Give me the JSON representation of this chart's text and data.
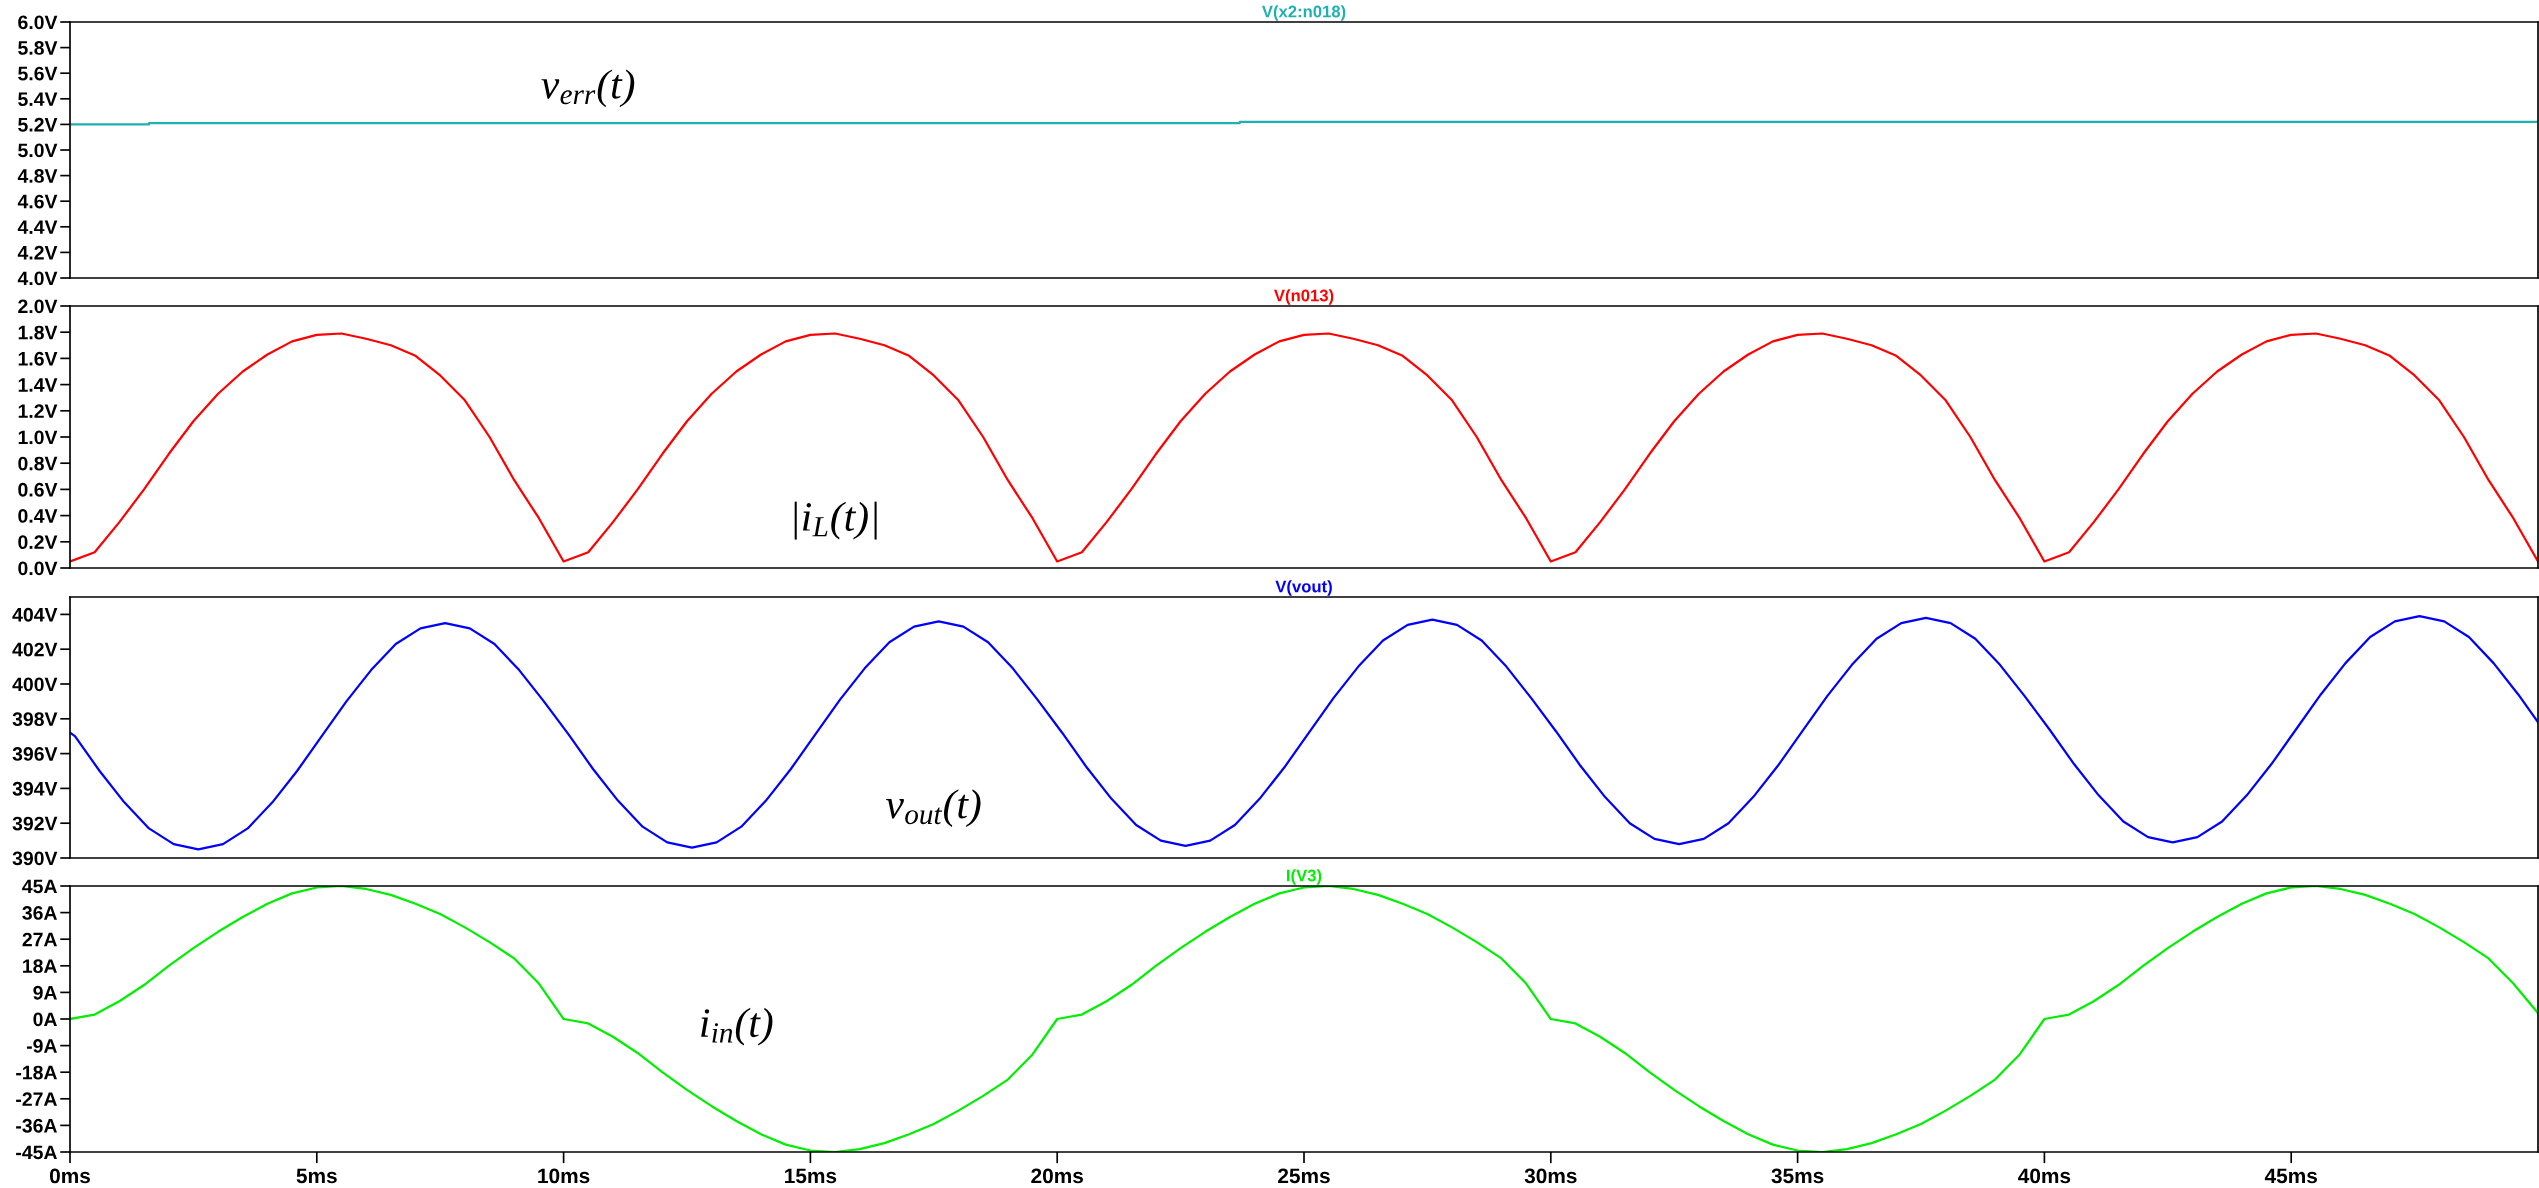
{
  "chart_data": [
    {
      "type": "step",
      "x": [
        0,
        1.6,
        23.7,
        50
      ],
      "series": [
        {
          "name": "V(x2:n018)",
          "color": "#1fb1b1",
          "values": [
            5.2,
            5.21,
            5.22,
            5.22
          ]
        }
      ],
      "annotations": [
        "v$_{err}$(t)"
      ],
      "xlim": [
        0,
        50
      ],
      "ylim": [
        4.0,
        6.0
      ],
      "yticks": [
        {
          "value": 4.0,
          "label": "4.0V"
        },
        {
          "value": 4.2,
          "label": "4.2V"
        },
        {
          "value": 4.4,
          "label": "4.4V"
        },
        {
          "value": 4.6,
          "label": "4.6V"
        },
        {
          "value": 4.8,
          "label": "4.8V"
        },
        {
          "value": 5.0,
          "label": "5.0V"
        },
        {
          "value": 5.2,
          "label": "5.2V"
        },
        {
          "value": 5.4,
          "label": "5.4V"
        },
        {
          "value": 5.6,
          "label": "5.6V"
        },
        {
          "value": 5.8,
          "label": "5.8V"
        },
        {
          "value": 6.0,
          "label": "6.0V"
        }
      ],
      "tick_labels": "y",
      "grid": false,
      "legend": false
    },
    {
      "type": "line",
      "x": [
        0,
        0.5,
        1,
        1.5,
        2,
        2.5,
        3,
        3.5,
        4,
        4.5,
        5,
        5.5,
        6,
        6.5,
        7,
        7.5,
        8,
        8.5,
        9,
        9.5,
        10,
        10.5,
        11,
        11.5,
        12,
        12.5,
        13,
        13.5,
        14,
        14.5,
        15,
        15.5,
        16,
        16.5,
        17,
        17.5,
        18,
        18.5,
        19,
        19.5,
        20,
        20.5,
        21,
        21.5,
        22,
        22.5,
        23,
        23.5,
        24,
        24.5,
        25,
        25.5,
        26,
        26.5,
        27,
        27.5,
        28,
        28.5,
        29,
        29.5,
        30,
        30.5,
        31,
        31.5,
        32,
        32.5,
        33,
        33.5,
        34,
        34.5,
        35,
        35.5,
        36,
        36.5,
        37,
        37.5,
        38,
        38.5,
        39,
        39.5,
        40,
        40.5,
        41,
        41.5,
        42,
        42.5,
        43,
        43.5,
        44,
        44.5,
        45,
        45.5,
        46,
        46.5,
        47,
        47.5,
        48,
        48.5,
        49,
        49.5,
        50
      ],
      "series": [
        {
          "name": "V(n013)",
          "color": "#ff0000",
          "values": [
            0.05,
            0.12,
            0.35,
            0.6,
            0.87,
            1.12,
            1.33,
            1.5,
            1.63,
            1.73,
            1.78,
            1.79,
            1.75,
            1.7,
            1.62,
            1.47,
            1.28,
            1.0,
            0.67,
            0.38,
            0.05,
            0.12,
            0.35,
            0.6,
            0.87,
            1.12,
            1.33,
            1.5,
            1.63,
            1.73,
            1.78,
            1.79,
            1.75,
            1.7,
            1.62,
            1.47,
            1.28,
            1.0,
            0.67,
            0.38,
            0.05,
            0.12,
            0.35,
            0.6,
            0.87,
            1.12,
            1.33,
            1.5,
            1.63,
            1.73,
            1.78,
            1.79,
            1.75,
            1.7,
            1.62,
            1.47,
            1.28,
            1.0,
            0.67,
            0.38,
            0.05,
            0.12,
            0.35,
            0.6,
            0.87,
            1.12,
            1.33,
            1.5,
            1.63,
            1.73,
            1.78,
            1.79,
            1.75,
            1.7,
            1.62,
            1.47,
            1.28,
            1.0,
            0.67,
            0.38,
            0.05,
            0.12,
            0.35,
            0.6,
            0.87,
            1.12,
            1.33,
            1.5,
            1.63,
            1.73,
            1.78,
            1.79,
            1.75,
            1.7,
            1.62,
            1.47,
            1.28,
            1.0,
            0.67,
            0.38,
            0.05
          ]
        }
      ],
      "annotations": [
        "|i$_{L}$(t)|"
      ],
      "xlim": [
        0,
        50
      ],
      "ylim": [
        0.0,
        2.0
      ],
      "yticks": [
        {
          "value": 0.0,
          "label": "0.0V"
        },
        {
          "value": 0.2,
          "label": "0.2V"
        },
        {
          "value": 0.4,
          "label": "0.4V"
        },
        {
          "value": 0.6,
          "label": "0.6V"
        },
        {
          "value": 0.8,
          "label": "0.8V"
        },
        {
          "value": 1.0,
          "label": "1.0V"
        },
        {
          "value": 1.2,
          "label": "1.2V"
        },
        {
          "value": 1.4,
          "label": "1.4V"
        },
        {
          "value": 1.6,
          "label": "1.6V"
        },
        {
          "value": 1.8,
          "label": "1.8V"
        },
        {
          "value": 2.0,
          "label": "2.0V"
        }
      ],
      "tick_labels": "y",
      "grid": false,
      "legend": false
    },
    {
      "type": "line",
      "x": [
        0,
        0.1,
        0.6,
        1.1,
        1.6,
        2.1,
        2.6,
        3.1,
        3.6,
        4.1,
        4.6,
        5.1,
        5.6,
        6.1,
        6.6,
        7.1,
        7.6,
        8.1,
        8.6,
        9.1,
        9.6,
        10.1,
        10.6,
        11.1,
        11.6,
        12.1,
        12.6,
        13.1,
        13.6,
        14.1,
        14.6,
        15.1,
        15.6,
        16.1,
        16.6,
        17.1,
        17.6,
        18.1,
        18.6,
        19.1,
        19.6,
        20.1,
        20.6,
        21.1,
        21.6,
        22.1,
        22.6,
        23.1,
        23.6,
        24.1,
        24.6,
        25.1,
        25.6,
        26.1,
        26.6,
        27.1,
        27.6,
        28.1,
        28.6,
        29.1,
        29.6,
        30.1,
        30.6,
        31.1,
        31.6,
        32.1,
        32.6,
        33.1,
        33.6,
        34.1,
        34.6,
        35.1,
        35.6,
        36.1,
        36.6,
        37.1,
        37.6,
        38.1,
        38.6,
        39.1,
        39.6,
        40.1,
        40.6,
        41.1,
        41.6,
        42.1,
        42.6,
        43.1,
        43.6,
        44.1,
        44.6,
        45.1,
        45.6,
        46.1,
        46.6,
        47.1,
        47.6,
        48.1,
        48.6,
        49.1,
        49.6,
        50
      ],
      "series": [
        {
          "name": "V(vout)",
          "color": "#0000ff",
          "values": [
            397.2,
            397,
            395,
            393.2,
            391.7,
            390.8,
            390.5,
            390.8,
            391.7,
            393.2,
            395,
            397,
            399,
            400.8,
            402.3,
            403.2,
            403.5,
            403.2,
            402.3,
            400.8,
            399,
            397.1,
            395.1,
            393.3,
            391.8,
            390.9,
            390.6,
            390.9,
            391.8,
            393.3,
            395.1,
            397.1,
            399.1,
            400.9,
            402.4,
            403.3,
            403.6,
            403.3,
            402.4,
            400.9,
            399.1,
            397.2,
            395.2,
            393.4,
            391.9,
            391,
            390.7,
            391,
            391.9,
            393.4,
            395.2,
            397.2,
            399.2,
            401,
            402.5,
            403.4,
            403.7,
            403.4,
            402.5,
            401,
            399.2,
            397.3,
            395.3,
            393.5,
            392,
            391.1,
            390.8,
            391.1,
            392,
            393.5,
            395.3,
            397.3,
            399.3,
            401.1,
            402.6,
            403.5,
            403.8,
            403.5,
            402.6,
            401.1,
            399.3,
            397.4,
            395.4,
            393.6,
            392.1,
            391.2,
            390.9,
            391.2,
            392.1,
            393.6,
            395.4,
            397.4,
            399.4,
            401.2,
            402.7,
            403.6,
            403.9,
            403.6,
            402.7,
            401.2,
            399.4,
            397.8
          ]
        }
      ],
      "annotations": [
        "v$_{out}$(t)"
      ],
      "xlim": [
        0,
        50
      ],
      "ylim": [
        390,
        405
      ],
      "yticks": [
        {
          "value": 390,
          "label": "390V"
        },
        {
          "value": 392,
          "label": "392V"
        },
        {
          "value": 394,
          "label": "394V"
        },
        {
          "value": 396,
          "label": "396V"
        },
        {
          "value": 398,
          "label": "398V"
        },
        {
          "value": 400,
          "label": "400V"
        },
        {
          "value": 402,
          "label": "402V"
        },
        {
          "value": 404,
          "label": "404V"
        }
      ],
      "tick_labels": "y",
      "grid": false,
      "legend": false
    },
    {
      "type": "line",
      "x": [
        0,
        0.5,
        1,
        1.5,
        2,
        2.5,
        3,
        3.5,
        4,
        4.5,
        5,
        5.5,
        6,
        6.5,
        7,
        7.5,
        8,
        8.5,
        9,
        9.5,
        10,
        10.5,
        11,
        11.5,
        12,
        12.5,
        13,
        13.5,
        14,
        14.5,
        15,
        15.5,
        16,
        16.5,
        17,
        17.5,
        18,
        18.5,
        19,
        19.5,
        20,
        20.5,
        21,
        21.5,
        22,
        22.5,
        23,
        23.5,
        24,
        24.5,
        25,
        25.5,
        26,
        26.5,
        27,
        27.5,
        28,
        28.5,
        29,
        29.5,
        30,
        30.5,
        31,
        31.5,
        32,
        32.5,
        33,
        33.5,
        34,
        34.5,
        35,
        35.5,
        36,
        36.5,
        37,
        37.5,
        38,
        38.5,
        39,
        39.5,
        40,
        40.5,
        41,
        41.5,
        42,
        42.5,
        43,
        43.5,
        44,
        44.5,
        45,
        45.5,
        46,
        46.5,
        47,
        47.5,
        48,
        48.5,
        49,
        49.5,
        50
      ],
      "series": [
        {
          "name": "I(V3)",
          "color": "#00ee00",
          "values": [
            0,
            1.5,
            6,
            11.5,
            18,
            24,
            29.5,
            34.5,
            39,
            42.5,
            44.5,
            45,
            44,
            42,
            39,
            35.5,
            31,
            26,
            20.5,
            12,
            0,
            -1.5,
            -6,
            -11.5,
            -18,
            -24,
            -29.5,
            -34.5,
            -39,
            -42.5,
            -44.5,
            -45,
            -44,
            -42,
            -39,
            -35.5,
            -31,
            -26,
            -20.5,
            -12,
            0,
            1.5,
            6,
            11.5,
            18,
            24,
            29.5,
            34.5,
            39,
            42.5,
            44.5,
            45,
            44,
            42,
            39,
            35.5,
            31,
            26,
            20.5,
            12,
            0,
            -1.5,
            -6,
            -11.5,
            -18,
            -24,
            -29.5,
            -34.5,
            -39,
            -42.5,
            -44.5,
            -45,
            -44,
            -42,
            -39,
            -35.5,
            -31,
            -26,
            -20.5,
            -12,
            0,
            1.5,
            6,
            11.5,
            18,
            24,
            29.5,
            34.5,
            39,
            42.5,
            44.5,
            45,
            44,
            42,
            39,
            35.5,
            31,
            26,
            20.5,
            12,
            2
          ]
        }
      ],
      "annotations": [
        "i$_{in}$(t)"
      ],
      "xlim": [
        0,
        50
      ],
      "xticks": [
        {
          "value": 0,
          "label": "0ms"
        },
        {
          "value": 5,
          "label": "5ms"
        },
        {
          "value": 10,
          "label": "10ms"
        },
        {
          "value": 15,
          "label": "15ms"
        },
        {
          "value": 20,
          "label": "20ms"
        },
        {
          "value": 25,
          "label": "25ms"
        },
        {
          "value": 30,
          "label": "30ms"
        },
        {
          "value": 35,
          "label": "35ms"
        },
        {
          "value": 40,
          "label": "40ms"
        },
        {
          "value": 45,
          "label": "45ms"
        }
      ],
      "ylim": [
        -45,
        45
      ],
      "yticks": [
        {
          "value": -45,
          "label": "-45A"
        },
        {
          "value": -36,
          "label": "-36A"
        },
        {
          "value": -27,
          "label": "-27A"
        },
        {
          "value": -18,
          "label": "-18A"
        },
        {
          "value": -9,
          "label": "-9A"
        },
        {
          "value": 0,
          "label": "0A"
        },
        {
          "value": 9,
          "label": "9A"
        },
        {
          "value": 18,
          "label": "18A"
        },
        {
          "value": 27,
          "label": "27A"
        },
        {
          "value": 36,
          "label": "36A"
        },
        {
          "value": 45,
          "label": "45A"
        }
      ],
      "grid": false,
      "legend": false
    }
  ]
}
